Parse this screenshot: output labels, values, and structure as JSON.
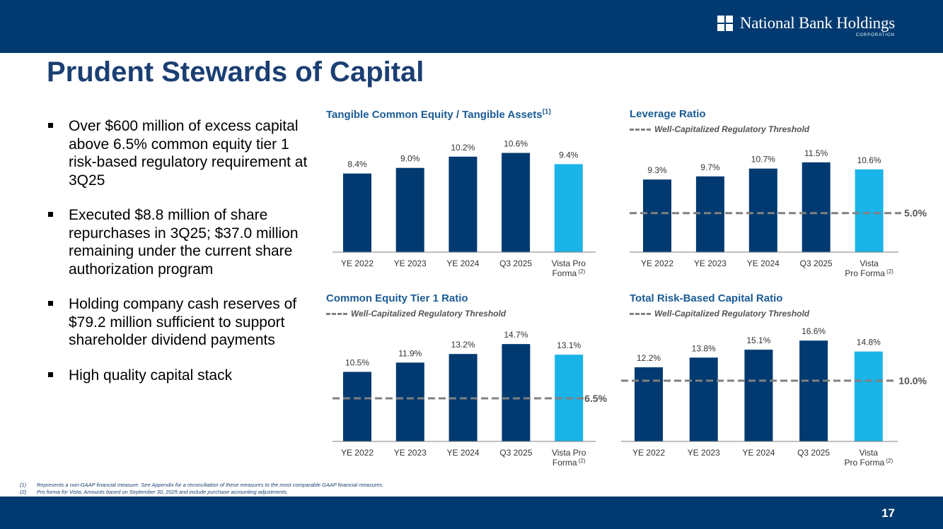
{
  "header": {
    "logo_text": "National Bank Holdings",
    "logo_subtext": "CORPORATION"
  },
  "title": "Prudent Stewards of Capital",
  "bullets": [
    "Over $600 million of excess capital above 6.5% common equity tier 1 risk-based regulatory requirement at 3Q25",
    "Executed $8.8 million of share repurchases in 3Q25; $37.0 million remaining under the current share authorization program",
    "Holding company cash reserves of $79.2 million sufficient to support shareholder dividend payments",
    "High quality capital stack"
  ],
  "colors": {
    "dark_bar": "#003a70",
    "highlight_bar": "#1ab4e8",
    "threshold_line": "#808080",
    "title_blue": "#1b3f72",
    "chart_title": "#1b5b95"
  },
  "chart_data": [
    {
      "type": "bar",
      "title": "Tangible Common Equity / Tangible Assets",
      "title_superscript": "(1)",
      "categories": [
        "YE 2022",
        "YE 2023",
        "YE 2024",
        "Q3 2025",
        "Vista Pro Forma"
      ],
      "category_lines": [
        [
          "YE 2022"
        ],
        [
          "YE 2023"
        ],
        [
          "YE 2024"
        ],
        [
          "Q3 2025"
        ],
        [
          "Vista Pro",
          "Forma"
        ]
      ],
      "category_superscripts": [
        "",
        "",
        "",
        "",
        "(2)"
      ],
      "values": [
        8.4,
        9.0,
        10.2,
        10.6,
        9.4
      ],
      "labels": [
        "8.4%",
        "9.0%",
        "10.2%",
        "10.6%",
        "9.4%"
      ],
      "highlight_index": 4,
      "ylim": [
        0,
        12.6
      ]
    },
    {
      "type": "bar",
      "title": "Leverage Ratio",
      "title_superscript": "",
      "legend": "Well-Capitalized Regulatory Threshold",
      "categories": [
        "YE 2022",
        "YE 2023",
        "YE 2024",
        "Q3 2025",
        "Vista Pro Forma"
      ],
      "category_lines": [
        [
          "YE 2022"
        ],
        [
          "YE 2023"
        ],
        [
          "YE 2024"
        ],
        [
          "Q3 2025"
        ],
        [
          "Vista",
          "Pro Forma"
        ]
      ],
      "category_superscripts": [
        "",
        "",
        "",
        "",
        "(2)"
      ],
      "values": [
        9.3,
        9.7,
        10.7,
        11.5,
        10.6
      ],
      "labels": [
        "9.3%",
        "9.7%",
        "10.7%",
        "11.5%",
        "10.6%"
      ],
      "highlight_index": 4,
      "threshold": 5.0,
      "threshold_label": "5.0%",
      "ylim": [
        0,
        14.2
      ]
    },
    {
      "type": "bar",
      "title": "Common Equity Tier 1 Ratio",
      "title_superscript": "",
      "legend": "Well-Capitalized Regulatory Threshold",
      "categories": [
        "YE 2022",
        "YE 2023",
        "YE 2024",
        "Q3 2025",
        "Vista Pro Forma"
      ],
      "category_lines": [
        [
          "YE 2022"
        ],
        [
          "YE 2023"
        ],
        [
          "YE 2024"
        ],
        [
          "Q3 2025"
        ],
        [
          "Vista Pro",
          "Forma"
        ]
      ],
      "category_superscripts": [
        "",
        "",
        "",
        "",
        "(2)"
      ],
      "values": [
        10.5,
        11.9,
        13.2,
        14.7,
        13.1
      ],
      "labels": [
        "10.5%",
        "11.9%",
        "13.2%",
        "14.7%",
        "13.1%"
      ],
      "highlight_index": 4,
      "threshold": 6.5,
      "threshold_label": "6.5%",
      "ylim": [
        0,
        17.7
      ]
    },
    {
      "type": "bar",
      "title": "Total Risk-Based Capital Ratio",
      "title_superscript": "",
      "legend": "Well-Capitalized Regulatory Threshold",
      "categories": [
        "YE 2022",
        "YE 2023",
        "YE 2024",
        "Q3 2025",
        "Vista Pro Forma"
      ],
      "category_lines": [
        [
          "YE 2022"
        ],
        [
          "YE 2023"
        ],
        [
          "YE 2024"
        ],
        [
          "Q3 2025"
        ],
        [
          "Vista",
          "Pro Forma"
        ]
      ],
      "category_superscripts": [
        "",
        "",
        "",
        "",
        "(2)"
      ],
      "values": [
        12.2,
        13.8,
        15.1,
        16.6,
        14.8
      ],
      "labels": [
        "12.2%",
        "13.8%",
        "15.1%",
        "16.6%",
        "14.8%"
      ],
      "highlight_index": 4,
      "threshold": 10.0,
      "threshold_label": "10.0%",
      "ylim": [
        0,
        19.3
      ]
    }
  ],
  "footnotes": [
    {
      "num": "(1)",
      "text": "Represents a non-GAAP financial measure.  See Appendix for a reconciliation of these measures to the most comparable GAAP financial measures."
    },
    {
      "num": "(2)",
      "text": "Pro forma for Vista; Amounts based on September 30, 2025 and include purchase accounting adjustments."
    }
  ],
  "page_number": "17"
}
